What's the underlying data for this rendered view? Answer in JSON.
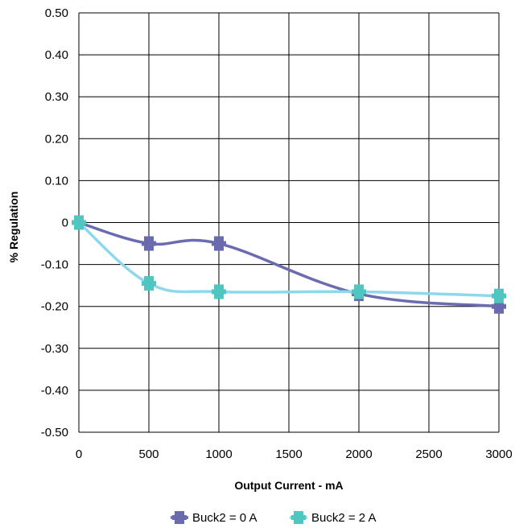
{
  "chart_data": {
    "type": "line",
    "title": "",
    "xlabel": "Output Current - mA",
    "ylabel": "% Regulation",
    "xlim": [
      0,
      3000
    ],
    "ylim": [
      -0.5,
      0.5
    ],
    "x_ticks": [
      0,
      500,
      1000,
      1500,
      2000,
      2500,
      3000
    ],
    "x_tick_labels": [
      "0",
      "500",
      "1000",
      "1500",
      "2000",
      "2500",
      "3000"
    ],
    "y_ticks": [
      0.5,
      0.4,
      0.3,
      0.2,
      0.1,
      0,
      -0.1,
      -0.2,
      -0.3,
      -0.4,
      -0.5
    ],
    "y_tick_labels": [
      "0.50",
      "0.40",
      "0.30",
      "0.20",
      "0.10",
      "0",
      "-0.10",
      "-0.20",
      "-0.30",
      "-0.40",
      "-0.50"
    ],
    "grid": true,
    "legend_position": "bottom",
    "series": [
      {
        "name": "Buck2 = 0 A",
        "color": "#6b6bb0",
        "marker_color": "#6a6aae",
        "x": [
          0,
          500,
          1000,
          2000,
          3000
        ],
        "y": [
          0,
          -0.05,
          -0.05,
          -0.17,
          -0.2
        ]
      },
      {
        "name": "Buck2 = 2 A",
        "color": "#8ed8ee",
        "marker_color": "#4fc6c0",
        "x": [
          0,
          500,
          1000,
          2000,
          3000
        ],
        "y": [
          0,
          -0.145,
          -0.165,
          -0.165,
          -0.175
        ]
      }
    ]
  }
}
